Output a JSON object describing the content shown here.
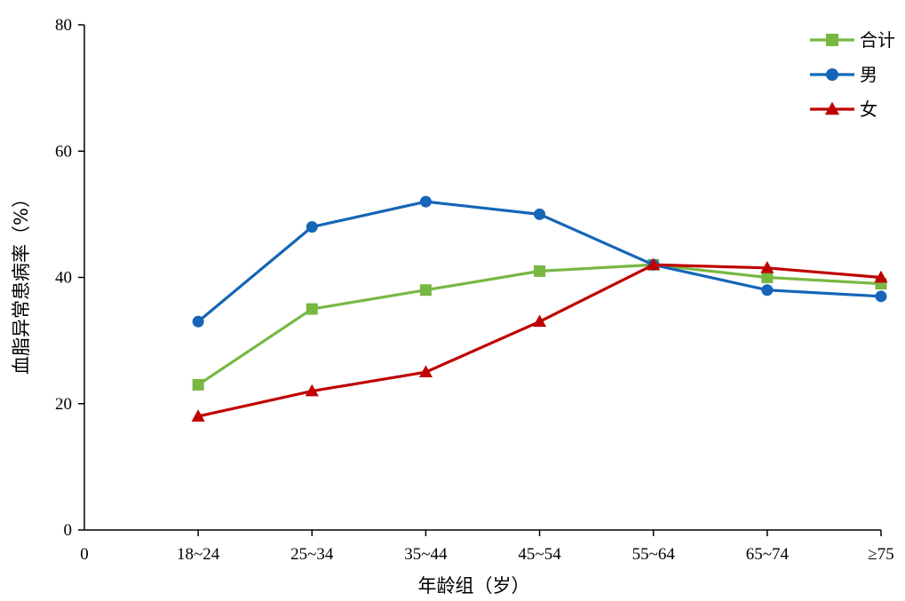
{
  "chart_data": {
    "type": "line",
    "xlabel": "年龄组（岁）",
    "ylabel": "血脂异常患病率（%）",
    "origin_label": "0",
    "categories": [
      "18~24",
      "25~34",
      "35~44",
      "45~54",
      "55~64",
      "65~74",
      "≥75"
    ],
    "ylim": [
      0,
      80
    ],
    "yticks": [
      0,
      20,
      40,
      60,
      80
    ],
    "grid": false,
    "legend_position": "top-right",
    "series": [
      {
        "name": "合计",
        "color": "#77b843",
        "marker": "square",
        "values": [
          23,
          35,
          38,
          41,
          42,
          40,
          39
        ]
      },
      {
        "name": "男",
        "color": "#1565b8",
        "marker": "circle",
        "values": [
          33,
          48,
          52,
          50,
          42,
          38,
          37
        ]
      },
      {
        "name": "女",
        "color": "#c00000",
        "marker": "triangle",
        "values": [
          18,
          22,
          25,
          33,
          42,
          41.5,
          40
        ]
      }
    ]
  }
}
